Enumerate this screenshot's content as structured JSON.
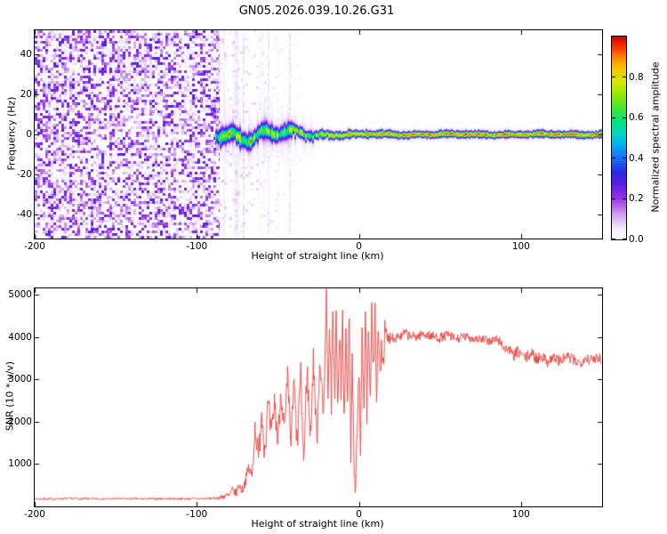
{
  "title": "GN05.2026.039.10.26.G31",
  "colors": {
    "snr_line": "#e8433f",
    "axis": "#000000",
    "background": "#ffffff"
  },
  "chart_data": [
    {
      "type": "heatmap",
      "panel": "top",
      "xlabel": "Height of straight line (km)",
      "ylabel": "Frequency (Hz)",
      "xlim": [
        -200,
        150
      ],
      "ylim": [
        -52,
        52
      ],
      "xticks": [
        -200,
        -100,
        0,
        100
      ],
      "yticks": [
        -40,
        -20,
        0,
        20,
        40
      ],
      "colorbar": {
        "label": "Normalized spectral amplitude",
        "range": [
          0,
          1
        ],
        "ticks": [
          0,
          0.2,
          0.4,
          0.6,
          0.8
        ],
        "tick_labels": [
          "0.0",
          "0.2",
          "0.4",
          "0.6",
          "0.8"
        ],
        "colormap_stops": [
          {
            "v": 0.0,
            "c": "#ffffff"
          },
          {
            "v": 0.05,
            "c": "#f3ecfb"
          },
          {
            "v": 0.12,
            "c": "#cfa3ef"
          },
          {
            "v": 0.2,
            "c": "#9933e6"
          },
          {
            "v": 0.27,
            "c": "#5a1ee0"
          },
          {
            "v": 0.33,
            "c": "#2a2ae8"
          },
          {
            "v": 0.4,
            "c": "#1e6ef5"
          },
          {
            "v": 0.46,
            "c": "#00aaf0"
          },
          {
            "v": 0.52,
            "c": "#00d8c8"
          },
          {
            "v": 0.58,
            "c": "#00e080"
          },
          {
            "v": 0.64,
            "c": "#38e838"
          },
          {
            "v": 0.71,
            "c": "#90e800"
          },
          {
            "v": 0.78,
            "c": "#d8e800"
          },
          {
            "v": 0.84,
            "c": "#f5c800"
          },
          {
            "v": 0.89,
            "c": "#ff9000"
          },
          {
            "v": 0.94,
            "c": "#ff4000"
          },
          {
            "v": 1.0,
            "c": "#d80000"
          }
        ]
      },
      "content": {
        "noise_region": {
          "x_range": [
            -200,
            -86
          ],
          "amplitude_range": [
            0,
            0.3
          ],
          "description": "dense purple speckle noise left of -86 km"
        },
        "signal_band": {
          "x_start": -88.5,
          "center_hz": 0,
          "wiggle_amplitude_hz": [
            [
              -88,
              3.5
            ],
            [
              -75,
              4.2
            ],
            [
              -60,
              3.8
            ],
            [
              -45,
              3.0
            ],
            [
              -32,
              1.8
            ],
            [
              -20,
              1.0
            ],
            [
              -5,
              0.5
            ],
            [
              150,
              0.35
            ]
          ],
          "halfwidth_hz": [
            [
              -88,
              5.0
            ],
            [
              -78,
              5.5
            ],
            [
              -60,
              4.6
            ],
            [
              -45,
              4.8
            ],
            [
              -35,
              3.2
            ],
            [
              -20,
              2.6
            ],
            [
              0,
              2.2
            ],
            [
              40,
              2.0
            ],
            [
              150,
              2.0
            ]
          ],
          "peak_amplitude": [
            [
              -88,
              0.8
            ],
            [
              -70,
              0.85
            ],
            [
              -50,
              0.8
            ],
            [
              -30,
              0.78
            ],
            [
              -15,
              0.9
            ],
            [
              0,
              0.93
            ],
            [
              30,
              0.97
            ],
            [
              150,
              0.97
            ]
          ]
        },
        "seed": 7
      }
    },
    {
      "type": "line",
      "panel": "bottom",
      "xlabel": "Height of straight line (km)",
      "ylabel": "SNR (10 * v/v)",
      "xlim": [
        -200,
        150
      ],
      "ylim": [
        0,
        5150
      ],
      "xticks": [
        -200,
        -100,
        0,
        100
      ],
      "yticks": [
        1000,
        2000,
        3000,
        4000,
        5000
      ],
      "series": [
        {
          "name": "SNR",
          "color": "#e8433f",
          "x": [
            -200,
            -190,
            -180,
            -170,
            -160,
            -150,
            -140,
            -130,
            -120,
            -110,
            -100,
            -95,
            -90,
            -85,
            -82,
            -80,
            -78,
            -76,
            -74,
            -72,
            -70,
            -68,
            -66,
            -64,
            -62,
            -60,
            -58,
            -56,
            -54,
            -52,
            -50,
            -48,
            -46,
            -44,
            -42,
            -40,
            -38,
            -36,
            -34,
            -32,
            -30,
            -28,
            -26,
            -24,
            -22,
            -20,
            -19,
            -18,
            -17,
            -16,
            -15,
            -14,
            -13,
            -12,
            -11,
            -10,
            -9,
            -8,
            -7,
            -6,
            -5,
            -4,
            -3,
            -2,
            -1,
            0,
            1,
            2,
            3,
            4,
            5,
            6,
            7,
            8,
            9,
            10,
            11,
            12,
            13,
            14,
            15,
            16,
            18,
            20,
            22,
            24,
            26,
            28,
            30,
            35,
            40,
            45,
            50,
            55,
            60,
            65,
            70,
            75,
            80,
            85,
            88,
            90,
            92,
            95,
            98,
            100,
            103,
            106,
            110,
            113,
            116,
            120,
            124,
            128,
            132,
            136,
            140,
            144,
            147,
            150
          ],
          "y": [
            180,
            175,
            185,
            180,
            178,
            182,
            180,
            178,
            183,
            180,
            182,
            185,
            190,
            210,
            260,
            240,
            400,
            300,
            500,
            380,
            600,
            900,
            700,
            1900,
            1100,
            2300,
            1300,
            2400,
            1600,
            2500,
            1500,
            2800,
            1700,
            3000,
            1500,
            2900,
            1400,
            3200,
            1000,
            3300,
            1600,
            3500,
            1500,
            3600,
            2000,
            5000,
            2600,
            4200,
            2200,
            4900,
            2600,
            4500,
            2000,
            4300,
            2600,
            4600,
            1800,
            4000,
            2400,
            5100,
            1200,
            3500,
            600,
            260,
            2000,
            3600,
            1400,
            4200,
            2200,
            4600,
            2000,
            4400,
            2600,
            4800,
            3000,
            4500,
            2600,
            4200,
            3000,
            3900,
            3400,
            4100,
            3900,
            4050,
            3950,
            4050,
            4000,
            4100,
            4050,
            4000,
            4080,
            4020,
            3980,
            4050,
            3950,
            4000,
            3980,
            3950,
            3900,
            3950,
            3850,
            3700,
            3750,
            3550,
            3650,
            3600,
            3500,
            3620,
            3480,
            3560,
            3420,
            3520,
            3430,
            3540,
            3460,
            3400,
            3520,
            3440,
            3560,
            3480
          ],
          "noise_amplitude": {
            "x": [
              -200,
              -89,
              -85,
              -70,
              -62,
              15,
              20,
              85,
              95,
              150
            ],
            "amp": [
              25,
              25,
              70,
              120,
              350,
              350,
              120,
              110,
              140,
              140
            ]
          }
        }
      ]
    }
  ]
}
